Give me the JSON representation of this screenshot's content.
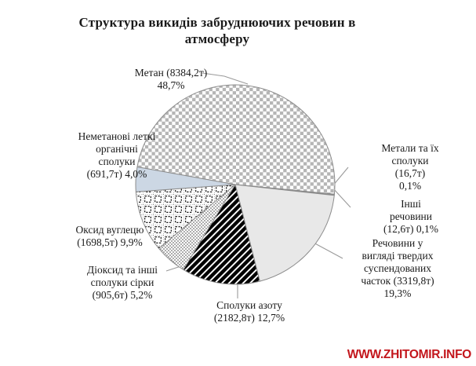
{
  "title": "Структура викидів забруднюючих речовин в атмосферу",
  "watermark": {
    "text": "WWW.ZHITOMIR.INFO",
    "color": "#C3161C"
  },
  "chart_data": {
    "type": "pie",
    "title": "Структура викидів забруднюючих речовин в атмосферу",
    "unit": "т",
    "start_angle": 280.2,
    "legend_position": "none",
    "labels_style": "callout-labels-with-leader-lines",
    "slices": [
      {
        "name": "Метан",
        "value_t": 8384.2,
        "percent": 48.7,
        "label": "Метан (8384,2т)\n48,7%",
        "pattern": "checker",
        "color": "#b5b5b5"
      },
      {
        "name": "Метали та їх сполуки",
        "value_t": 16.7,
        "percent": 0.1,
        "label": "Метали та їх\nсполуки (16,7т)\n0,1%",
        "pattern": "solid",
        "color": "#8f8f8f"
      },
      {
        "name": "Інші речовини",
        "value_t": 12.6,
        "percent": 0.1,
        "label": "Інші речовини\n(12,6т) 0,1%",
        "pattern": "solid",
        "color": "#ffffff"
      },
      {
        "name": "Речовини у вигляді твердих суспендованих часток",
        "value_t": 3319.8,
        "percent": 19.3,
        "label": "Речовини у\nвигляді твердих\nсуспендованих\nчасток (3319,8т)\n19,3%",
        "pattern": "solid",
        "color": "#e8e8e8"
      },
      {
        "name": "Сполуки азоту",
        "value_t": 2182.8,
        "percent": 12.7,
        "label": "Сполуки азоту\n(2182,8т) 12,7%",
        "pattern": "stripes",
        "color": "#000000"
      },
      {
        "name": "Діоксид та інші сполуки сірки",
        "value_t": 905.6,
        "percent": 5.2,
        "label": "Діоксид та інші\nсполуки сірки\n(905,6т) 5,2%",
        "pattern": "dots",
        "color": "#000000"
      },
      {
        "name": "Оксид вуглецю",
        "value_t": 1698.5,
        "percent": 9.9,
        "label": "Оксид вуглецю\n(1698,5т) 9,9%",
        "pattern": "dashgrid",
        "color": "#000000"
      },
      {
        "name": "Неметанові леткі органічні сполуки",
        "value_t": 691.7,
        "percent": 4.0,
        "label": "Неметанові леткі\nорганічні\nсполуки\n(691,7т) 4,0%",
        "pattern": "solid",
        "color": "#ccd7e4"
      }
    ]
  }
}
